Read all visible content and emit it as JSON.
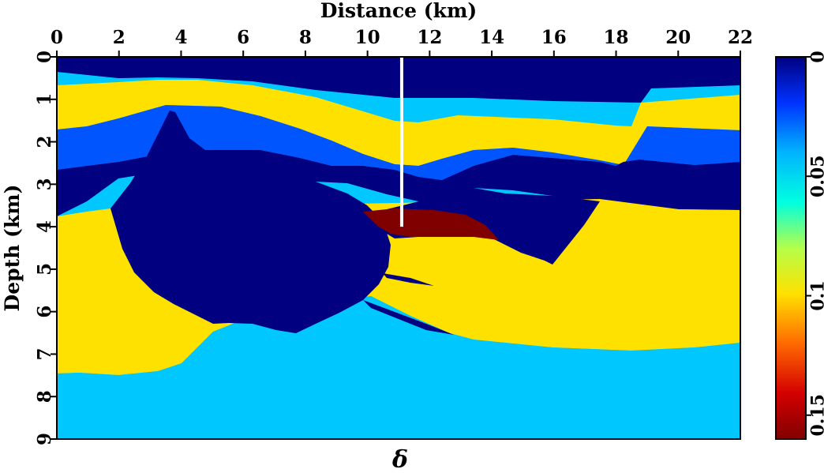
{
  "chart_data": {
    "type": "heatmap",
    "title": "",
    "xlabel": "Distance (km)",
    "ylabel": "Depth (km)",
    "bottom_label": "δ",
    "x_ticks": [
      "0",
      "2",
      "4",
      "6",
      "8",
      "10",
      "12",
      "14",
      "16",
      "18",
      "20",
      "22"
    ],
    "y_ticks": [
      "0",
      "1",
      "2",
      "3",
      "4",
      "5",
      "6",
      "7",
      "8",
      "9"
    ],
    "xlim": [
      0,
      22
    ],
    "ylim": [
      0,
      9
    ],
    "colorbar": {
      "ticks": [
        "0",
        "0.05",
        "0.1",
        "0.15"
      ],
      "range": [
        0,
        0.16
      ]
    },
    "well": {
      "x_km": 11.1,
      "depth_from": 0,
      "depth_to": 4.0
    },
    "colors": {
      "navy": "#000080",
      "blue": "#0055ff",
      "cyan": "#00c8ff",
      "yellow": "#ffe100",
      "darkred": "#800000",
      "white": "#ffffff"
    }
  }
}
